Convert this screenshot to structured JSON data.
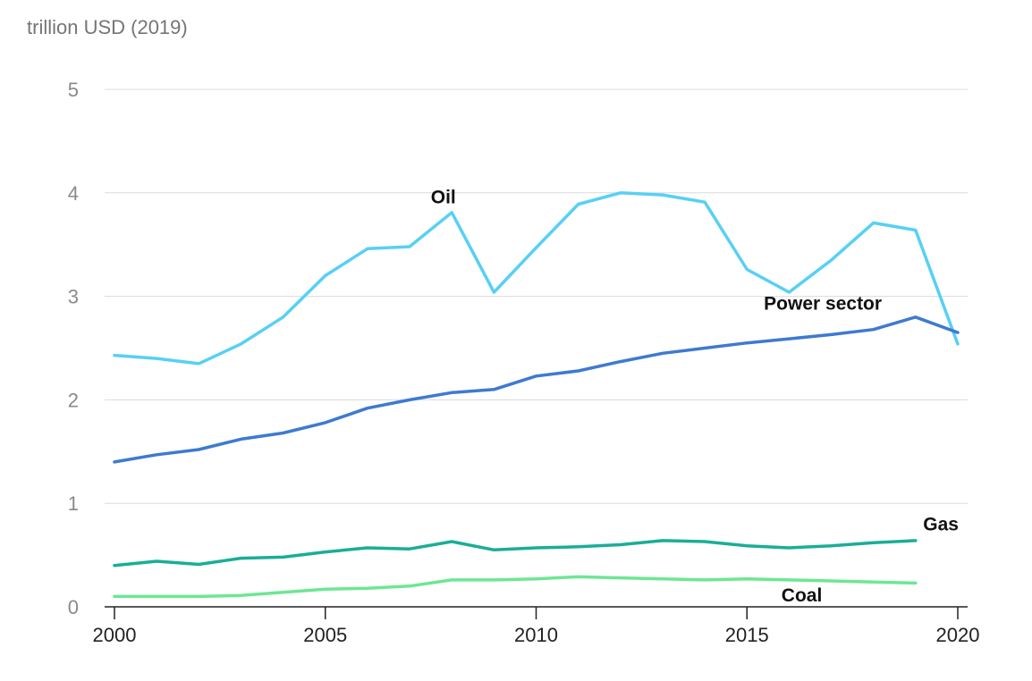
{
  "chart_data": {
    "type": "line",
    "ylabel": "trillion USD (2019)",
    "ylim": [
      0,
      5
    ],
    "xlim": [
      2000,
      2020
    ],
    "y_ticks": [
      "0",
      "1",
      "2",
      "3",
      "4",
      "5"
    ],
    "x_ticks": [
      "2000",
      "2005",
      "2010",
      "2015",
      "2020"
    ],
    "grid": true,
    "series": [
      {
        "name": "Oil",
        "color": "#57D0F5",
        "x": [
          2000,
          2001,
          2002,
          2003,
          2004,
          2005,
          2006,
          2007,
          2008,
          2009,
          2010,
          2011,
          2012,
          2013,
          2014,
          2015,
          2016,
          2017,
          2018,
          2019,
          2020
        ],
        "values": [
          2.43,
          2.4,
          2.35,
          2.54,
          2.8,
          3.2,
          3.46,
          3.48,
          3.81,
          3.04,
          3.47,
          3.89,
          4.0,
          3.98,
          3.91,
          3.26,
          3.04,
          3.35,
          3.71,
          3.64,
          2.54
        ]
      },
      {
        "name": "Power sector",
        "color": "#3E7AD0",
        "x": [
          2000,
          2001,
          2002,
          2003,
          2004,
          2005,
          2006,
          2007,
          2008,
          2009,
          2010,
          2011,
          2012,
          2013,
          2014,
          2015,
          2016,
          2017,
          2018,
          2019,
          2020
        ],
        "values": [
          1.4,
          1.47,
          1.52,
          1.62,
          1.68,
          1.78,
          1.92,
          2.0,
          2.07,
          2.1,
          2.23,
          2.28,
          2.37,
          2.45,
          2.5,
          2.55,
          2.59,
          2.63,
          2.68,
          2.8,
          2.65
        ]
      },
      {
        "name": "Gas",
        "color": "#1AAE96",
        "x": [
          2000,
          2001,
          2002,
          2003,
          2004,
          2005,
          2006,
          2007,
          2008,
          2009,
          2010,
          2011,
          2012,
          2013,
          2014,
          2015,
          2016,
          2017,
          2018,
          2019
        ],
        "values": [
          0.4,
          0.44,
          0.41,
          0.47,
          0.48,
          0.53,
          0.57,
          0.56,
          0.63,
          0.55,
          0.57,
          0.58,
          0.6,
          0.64,
          0.63,
          0.59,
          0.57,
          0.59,
          0.62,
          0.64
        ]
      },
      {
        "name": "Coal",
        "color": "#6EE694",
        "x": [
          2000,
          2001,
          2002,
          2003,
          2004,
          2005,
          2006,
          2007,
          2008,
          2009,
          2010,
          2011,
          2012,
          2013,
          2014,
          2015,
          2016,
          2017,
          2018,
          2019
        ],
        "values": [
          0.1,
          0.1,
          0.1,
          0.11,
          0.14,
          0.17,
          0.18,
          0.2,
          0.26,
          0.26,
          0.27,
          0.29,
          0.28,
          0.27,
          0.26,
          0.27,
          0.26,
          0.25,
          0.24,
          0.23
        ]
      }
    ],
    "annotations": [
      {
        "text": "Oil",
        "x": 2007.8,
        "y": 3.9
      },
      {
        "text": "Power sector",
        "x": 2016.8,
        "y": 2.87
      },
      {
        "text": "Gas",
        "x": 2019.6,
        "y": 0.74
      },
      {
        "text": "Coal",
        "x": 2016.3,
        "y": 0.05
      }
    ]
  }
}
